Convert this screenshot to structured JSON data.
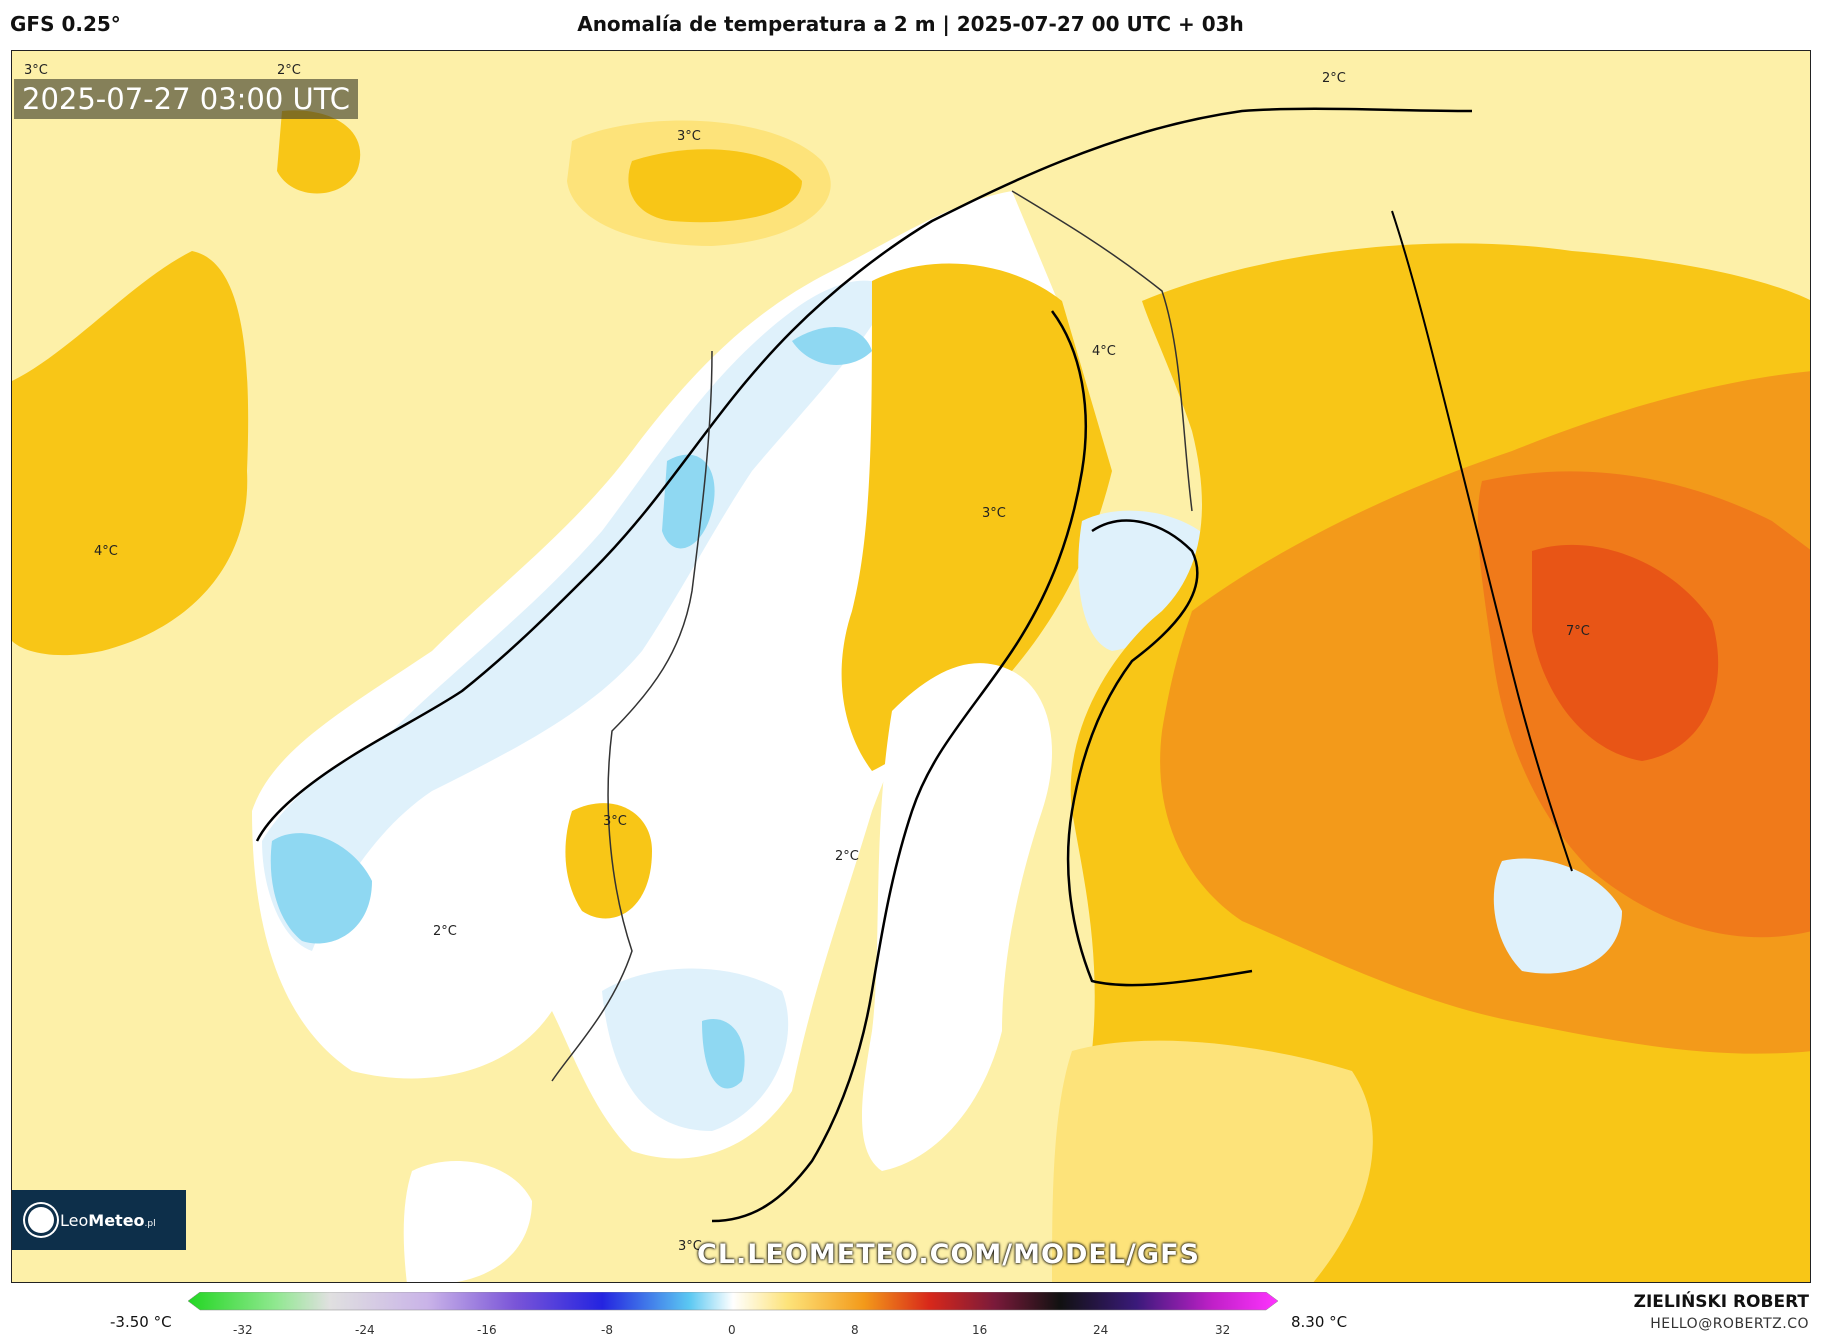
{
  "header": {
    "model": "GFS 0.25°",
    "title": "Anomalía de temperatura a 2 m | 2025-07-27 00 UTC + 03h"
  },
  "map": {
    "timestamp": "2025-07-27 03:00 UTC",
    "watermark_url": "CL.LEOMETEO.COM/MODEL/GFS",
    "contour_labels": [
      "3°C",
      "2°C",
      "3°C",
      "2°C",
      "4°C",
      "4°C",
      "3°C",
      "7°C",
      "3°C",
      "2°C",
      "2°C",
      "3°C"
    ],
    "colors": {
      "ocean_base": "#fdf0a8",
      "anomaly_0": "#ffffff",
      "anomaly_neg": "#dff1fb",
      "anomaly_neg_strong": "#8fd8f2",
      "anomaly_1_2": "#fde37a",
      "anomaly_3_4": "#f8c617",
      "anomaly_5": "#f39a1a",
      "anomaly_6": "#f07a1a",
      "anomaly_7": "#e85516"
    }
  },
  "logo": {
    "brand_light": "Leo",
    "brand_bold": "Meteo",
    "suffix": ".pl"
  },
  "colorbar": {
    "min_label": "-3.50 °C",
    "max_label": "8.30 °C",
    "ticks": [
      "-32",
      "-24",
      "-16",
      "-8",
      "0",
      "8",
      "16",
      "24",
      "32"
    ]
  },
  "footer": {
    "author": "ZIELIŃSKI ROBERT",
    "email": "HELLO@ROBERTZ.CO"
  }
}
